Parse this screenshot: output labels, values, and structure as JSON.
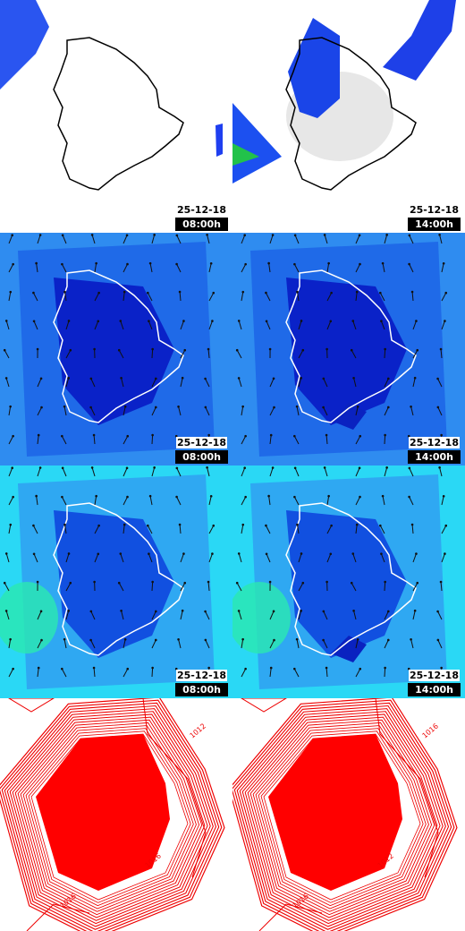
{
  "panels": [
    {
      "date": "25-12-18",
      "time": "08:00h"
    },
    {
      "date": "25-12-18",
      "time": "14:00h"
    },
    {
      "date": "25-12-18",
      "time": "08:00h"
    },
    {
      "date": "25-12-18",
      "time": "14:00h"
    },
    {
      "date": "25-12-18",
      "time": "08:00h"
    },
    {
      "date": "25-12-18",
      "time": "14:00h"
    }
  ],
  "pressure_panels": [
    {
      "contour_labels": [
        "1016",
        "1012",
        "1016"
      ]
    },
    {
      "contour_labels": [
        "1012",
        "1016",
        "1016"
      ]
    }
  ]
}
